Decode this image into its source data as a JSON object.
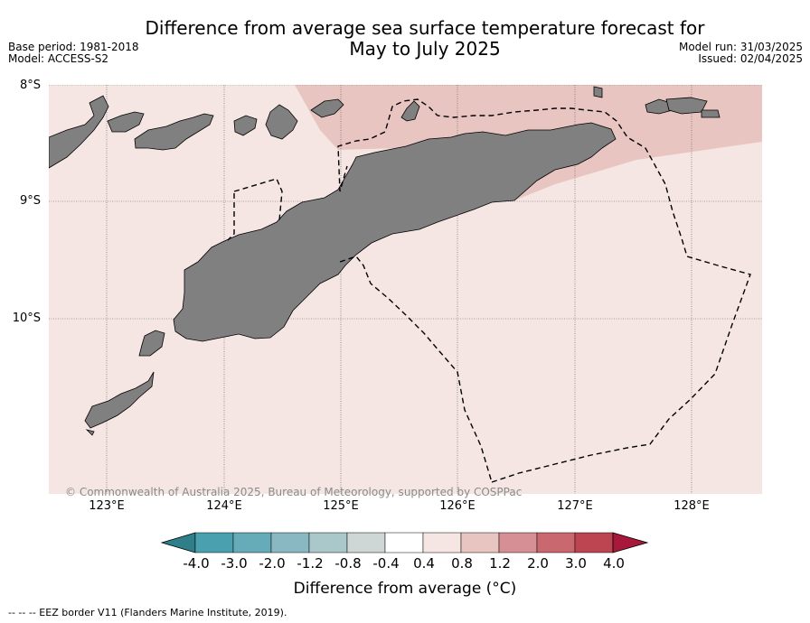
{
  "header": {
    "title_line1": "Difference from average sea surface temperature forecast for",
    "title_line2": "May to July 2025",
    "base_period": "Base period: 1981-2018",
    "model": "Model: ACCESS-S2",
    "model_run": "Model run: 31/03/2025",
    "issued": "Issued: 02/04/2025"
  },
  "map": {
    "lat_labels": [
      "8°S",
      "9°S",
      "10°S"
    ],
    "lon_labels": [
      "123°E",
      "124°E",
      "125°E",
      "126°E",
      "127°E",
      "128°E"
    ],
    "copyright": "© Commonwealth of Australia 2025, Bureau of Meteorology, supported by COSPPac",
    "land_color": "#808080",
    "sea_anomaly_colors": {
      "0.4 to 0.8": "#f5e6e4",
      "0.8 to 1.2": "#e8c5c0"
    }
  },
  "colorbar": {
    "ticks": [
      "-4.0",
      "-3.0",
      "-2.0",
      "-1.2",
      "-0.8",
      "-0.4",
      "0.4",
      "0.8",
      "1.2",
      "2.0",
      "3.0",
      "4.0"
    ],
    "colors": [
      "#2e7f8a",
      "#4aa0ae",
      "#66abb8",
      "#8ab8c2",
      "#aac7ca",
      "#cfd6d6",
      "#ffffff",
      "#f5e6e4",
      "#e8c5c0",
      "#d68f94",
      "#c9686f",
      "#bd4552",
      "#a8183a"
    ],
    "label": "Difference from average (°C)"
  },
  "footer": {
    "legend": "--  --  -- EEZ border V11 (Flanders Marine Institute, 2019)."
  }
}
